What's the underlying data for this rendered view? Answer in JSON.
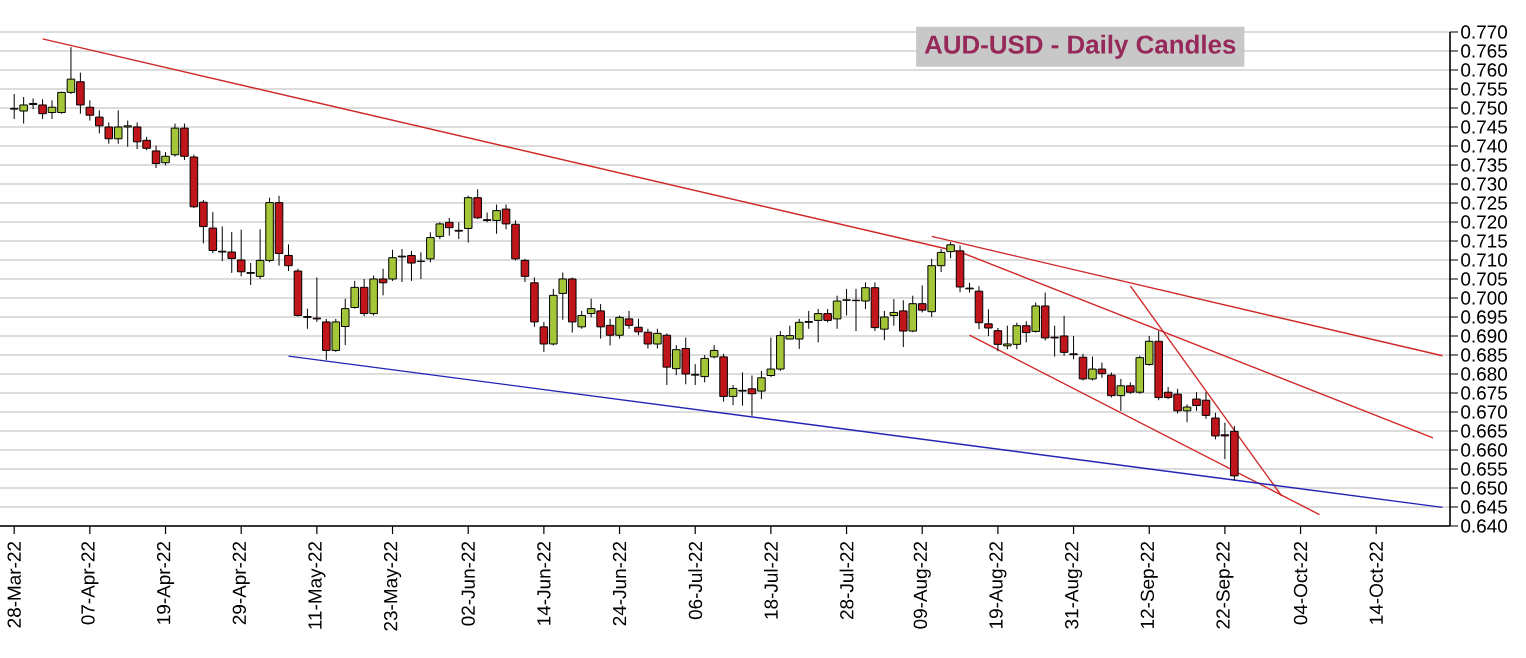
{
  "chart_data": {
    "type": "candlestick",
    "title": "AUD-USD - Daily Candles",
    "categories": [
      "28-Mar-22",
      null,
      null,
      null,
      null,
      null,
      null,
      null,
      "07-Apr-22",
      null,
      null,
      null,
      null,
      null,
      null,
      null,
      "19-Apr-22",
      null,
      null,
      null,
      null,
      null,
      null,
      null,
      "29-Apr-22",
      null,
      null,
      null,
      null,
      null,
      null,
      null,
      "11-May-22",
      null,
      null,
      null,
      null,
      null,
      null,
      null,
      "23-May-22",
      null,
      null,
      null,
      null,
      null,
      null,
      null,
      "02-Jun-22",
      null,
      null,
      null,
      null,
      null,
      null,
      null,
      "14-Jun-22",
      null,
      null,
      null,
      null,
      null,
      null,
      null,
      "24-Jun-22",
      null,
      null,
      null,
      null,
      null,
      null,
      null,
      "06-Jul-22",
      null,
      null,
      null,
      null,
      null,
      null,
      null,
      "18-Jul-22",
      null,
      null,
      null,
      null,
      null,
      null,
      null,
      "28-Jul-22",
      null,
      null,
      null,
      null,
      null,
      null,
      null,
      "09-Aug-22",
      null,
      null,
      null,
      null,
      null,
      null,
      null,
      "19-Aug-22",
      null,
      null,
      null,
      null,
      null,
      null,
      null,
      "31-Aug-22",
      null,
      null,
      null,
      null,
      null,
      null,
      null,
      "12-Sep-22",
      null,
      null,
      null,
      null,
      null,
      null,
      null,
      "22-Sep-22",
      null,
      null,
      null,
      null,
      null,
      null,
      null,
      "04-Oct-22",
      null,
      null,
      null,
      null,
      null,
      null,
      null,
      "14-Oct-22",
      null,
      null,
      null,
      null,
      null,
      null,
      null
    ],
    "ohlc": [
      [
        0.7497,
        0.7537,
        0.7471,
        0.7499
      ],
      [
        0.7492,
        0.7529,
        0.7459,
        0.7508
      ],
      [
        0.7509,
        0.7525,
        0.7497,
        0.7512
      ],
      [
        0.7508,
        0.7523,
        0.7471,
        0.7485
      ],
      [
        0.7488,
        0.752,
        0.7471,
        0.7502
      ],
      [
        0.7488,
        0.7543,
        0.7485,
        0.7541
      ],
      [
        0.7541,
        0.766,
        0.7537,
        0.7576
      ],
      [
        0.7569,
        0.7593,
        0.7485,
        0.7508
      ],
      [
        0.7502,
        0.752,
        0.7467,
        0.7481
      ],
      [
        0.7476,
        0.7494,
        0.7433,
        0.7453
      ],
      [
        0.745,
        0.7462,
        0.7406,
        0.7419
      ],
      [
        0.7419,
        0.7494,
        0.7406,
        0.745
      ],
      [
        0.745,
        0.7467,
        0.7398,
        0.7453
      ],
      [
        0.745,
        0.7462,
        0.7392,
        0.7411
      ],
      [
        0.7415,
        0.7424,
        0.7389,
        0.7394
      ],
      [
        0.7387,
        0.7401,
        0.7342,
        0.7354
      ],
      [
        0.7356,
        0.7384,
        0.7349,
        0.7373
      ],
      [
        0.7377,
        0.7459,
        0.7372,
        0.7447
      ],
      [
        0.7447,
        0.7459,
        0.7363,
        0.7373
      ],
      [
        0.7371,
        0.7377,
        0.7237,
        0.724
      ],
      [
        0.7252,
        0.7258,
        0.7144,
        0.7188
      ],
      [
        0.7184,
        0.7226,
        0.7118,
        0.7125
      ],
      [
        0.7123,
        0.7188,
        0.7097,
        0.7121
      ],
      [
        0.7121,
        0.7174,
        0.7066,
        0.7104
      ],
      [
        0.71,
        0.718,
        0.7057,
        0.7069
      ],
      [
        0.7065,
        0.7092,
        0.7034,
        0.7067
      ],
      [
        0.7057,
        0.7181,
        0.705,
        0.7099
      ],
      [
        0.7099,
        0.7264,
        0.7094,
        0.7251
      ],
      [
        0.7251,
        0.7269,
        0.7085,
        0.7117
      ],
      [
        0.7112,
        0.7141,
        0.7071,
        0.7085
      ],
      [
        0.7071,
        0.7077,
        0.6951,
        0.6954
      ],
      [
        0.6951,
        0.6972,
        0.6919,
        0.6949
      ],
      [
        0.6947,
        0.7054,
        0.6937,
        0.6945
      ],
      [
        0.6937,
        0.6945,
        0.6837,
        0.6862
      ],
      [
        0.6862,
        0.6945,
        0.6858,
        0.6937
      ],
      [
        0.6925,
        0.6998,
        0.6876,
        0.6972
      ],
      [
        0.6975,
        0.7045,
        0.6972,
        0.7028
      ],
      [
        0.7028,
        0.705,
        0.6952,
        0.6959
      ],
      [
        0.6959,
        0.7059,
        0.6954,
        0.705
      ],
      [
        0.705,
        0.7077,
        0.7007,
        0.704
      ],
      [
        0.705,
        0.7127,
        0.7045,
        0.7106
      ],
      [
        0.7108,
        0.7129,
        0.7042,
        0.711
      ],
      [
        0.7112,
        0.7124,
        0.7045,
        0.7092
      ],
      [
        0.7097,
        0.712,
        0.705,
        0.7096
      ],
      [
        0.7103,
        0.7173,
        0.7094,
        0.7159
      ],
      [
        0.7162,
        0.7199,
        0.7155,
        0.7195
      ],
      [
        0.7199,
        0.7211,
        0.7164,
        0.7185
      ],
      [
        0.7178,
        0.7199,
        0.7155,
        0.7176
      ],
      [
        0.7183,
        0.7269,
        0.7146,
        0.7264
      ],
      [
        0.7264,
        0.7286,
        0.7208,
        0.7211
      ],
      [
        0.7206,
        0.7225,
        0.7199,
        0.7204
      ],
      [
        0.7204,
        0.7246,
        0.7169,
        0.723
      ],
      [
        0.7234,
        0.7246,
        0.7181,
        0.7195
      ],
      [
        0.7194,
        0.7204,
        0.7099,
        0.7103
      ],
      [
        0.7099,
        0.7103,
        0.7042,
        0.7057
      ],
      [
        0.704,
        0.7054,
        0.6924,
        0.6937
      ],
      [
        0.6924,
        0.6937,
        0.6858,
        0.6879
      ],
      [
        0.6879,
        0.7024,
        0.6875,
        0.7007
      ],
      [
        0.7012,
        0.7067,
        0.6943,
        0.705
      ],
      [
        0.705,
        0.7054,
        0.6909,
        0.6937
      ],
      [
        0.6924,
        0.6966,
        0.6919,
        0.6954
      ],
      [
        0.6959,
        0.6998,
        0.6949,
        0.6972
      ],
      [
        0.6966,
        0.6984,
        0.6893,
        0.6924
      ],
      [
        0.6928,
        0.6945,
        0.6875,
        0.6902
      ],
      [
        0.6902,
        0.6954,
        0.6893,
        0.6949
      ],
      [
        0.6945,
        0.6966,
        0.6919,
        0.6928
      ],
      [
        0.6923,
        0.6945,
        0.6902,
        0.6911
      ],
      [
        0.691,
        0.6919,
        0.6867,
        0.6879
      ],
      [
        0.6879,
        0.6919,
        0.6867,
        0.6907
      ],
      [
        0.6902,
        0.6907,
        0.6771,
        0.6818
      ],
      [
        0.6814,
        0.6876,
        0.6797,
        0.6864
      ],
      [
        0.6867,
        0.6896,
        0.6773,
        0.68
      ],
      [
        0.6797,
        0.6826,
        0.6771,
        0.6799
      ],
      [
        0.6793,
        0.685,
        0.6778,
        0.6841
      ],
      [
        0.6845,
        0.6876,
        0.6841,
        0.6862
      ],
      [
        0.6845,
        0.6853,
        0.6727,
        0.6741
      ],
      [
        0.6741,
        0.6771,
        0.6718,
        0.6762
      ],
      [
        0.6757,
        0.6804,
        0.6717,
        0.6755
      ],
      [
        0.6761,
        0.6796,
        0.669,
        0.6748
      ],
      [
        0.6755,
        0.6808,
        0.6734,
        0.679
      ],
      [
        0.6796,
        0.6896,
        0.6792,
        0.6813
      ],
      [
        0.6813,
        0.6913,
        0.6808,
        0.6901
      ],
      [
        0.6892,
        0.6927,
        0.6892,
        0.6901
      ],
      [
        0.6892,
        0.6945,
        0.6866,
        0.6936
      ],
      [
        0.6936,
        0.6966,
        0.6919,
        0.6938
      ],
      [
        0.6941,
        0.6971,
        0.6883,
        0.6959
      ],
      [
        0.6959,
        0.6971,
        0.6936,
        0.6941
      ],
      [
        0.6945,
        0.7006,
        0.6919,
        0.6992
      ],
      [
        0.6994,
        0.7024,
        0.6954,
        0.6995
      ],
      [
        0.6994,
        0.7024,
        0.6913,
        0.6993
      ],
      [
        0.6992,
        0.7041,
        0.6971,
        0.7027
      ],
      [
        0.7027,
        0.7041,
        0.6913,
        0.6922
      ],
      [
        0.6918,
        0.6966,
        0.6889,
        0.695
      ],
      [
        0.6954,
        0.6997,
        0.6927,
        0.6962
      ],
      [
        0.6966,
        0.6994,
        0.6871,
        0.6913
      ],
      [
        0.6913,
        0.7006,
        0.691,
        0.6985
      ],
      [
        0.6985,
        0.7033,
        0.6962,
        0.6968
      ],
      [
        0.6964,
        0.7103,
        0.695,
        0.7085
      ],
      [
        0.7085,
        0.7129,
        0.7068,
        0.712
      ],
      [
        0.7122,
        0.7147,
        0.7105,
        0.714
      ],
      [
        0.7124,
        0.7138,
        0.7015,
        0.7029
      ],
      [
        0.7024,
        0.704,
        0.7014,
        0.7026
      ],
      [
        0.7018,
        0.7031,
        0.6918,
        0.6935
      ],
      [
        0.6932,
        0.697,
        0.69,
        0.6921
      ],
      [
        0.6914,
        0.6921,
        0.686,
        0.6878
      ],
      [
        0.6874,
        0.6927,
        0.6865,
        0.6879
      ],
      [
        0.6878,
        0.6935,
        0.6865,
        0.6927
      ],
      [
        0.6927,
        0.6939,
        0.6883,
        0.6909
      ],
      [
        0.6912,
        0.6988,
        0.6909,
        0.6979
      ],
      [
        0.6979,
        0.7014,
        0.6888,
        0.6895
      ],
      [
        0.6897,
        0.6927,
        0.6846,
        0.6895
      ],
      [
        0.69,
        0.6953,
        0.6848,
        0.6857
      ],
      [
        0.6853,
        0.69,
        0.6839,
        0.6851
      ],
      [
        0.6844,
        0.6853,
        0.6783,
        0.6787
      ],
      [
        0.6787,
        0.6846,
        0.6783,
        0.6813
      ],
      [
        0.6813,
        0.683,
        0.679,
        0.6801
      ],
      [
        0.6797,
        0.6804,
        0.6738,
        0.6743
      ],
      [
        0.6743,
        0.6787,
        0.6703,
        0.6769
      ],
      [
        0.6769,
        0.6778,
        0.6748,
        0.6752
      ],
      [
        0.6752,
        0.6848,
        0.6748,
        0.6843
      ],
      [
        0.6825,
        0.69,
        0.6822,
        0.6886
      ],
      [
        0.6886,
        0.6913,
        0.6731,
        0.6738
      ],
      [
        0.6752,
        0.6766,
        0.6734,
        0.6738
      ],
      [
        0.6747,
        0.6761,
        0.6696,
        0.6703
      ],
      [
        0.6703,
        0.672,
        0.6673,
        0.6713
      ],
      [
        0.6734,
        0.6752,
        0.6703,
        0.6717
      ],
      [
        0.6731,
        0.6752,
        0.6682,
        0.6691
      ],
      [
        0.6684,
        0.6698,
        0.6628,
        0.6637
      ],
      [
        0.664,
        0.6672,
        0.6576,
        0.6637
      ],
      [
        0.6649,
        0.6663,
        0.652,
        0.6532
      ],
      null,
      null,
      null,
      null,
      null,
      null,
      null,
      null,
      null,
      null,
      null,
      null,
      null,
      null,
      null,
      null,
      null,
      null,
      null,
      null,
      null,
      null
    ],
    "colors": [
      "#a4c639",
      "#a4c639",
      "#a4c639",
      "#c0151b",
      "#a4c639",
      "#a4c639",
      "#a4c639",
      "#c0151b",
      "#c0151b",
      "#c0151b",
      "#c0151b",
      "#a4c639",
      "#a4c639",
      "#c0151b",
      "#c0151b",
      "#c0151b",
      "#a4c639",
      "#a4c639",
      "#c0151b",
      "#c0151b",
      "#c0151b",
      "#c0151b",
      "#c0151b",
      "#c0151b",
      "#c0151b",
      "#a4c639",
      "#a4c639",
      "#a4c639",
      "#c0151b",
      "#c0151b",
      "#c0151b",
      "#c0151b",
      "#c0151b",
      "#c0151b",
      "#a4c639",
      "#a4c639",
      "#a4c639",
      "#c0151b",
      "#a4c639",
      "#c0151b",
      "#a4c639",
      "#a4c639",
      "#c0151b",
      "#c0151b",
      "#a4c639",
      "#a4c639",
      "#c0151b",
      "#c0151b",
      "#a4c639",
      "#c0151b",
      "#c0151b",
      "#a4c639",
      "#c0151b",
      "#c0151b",
      "#c0151b",
      "#c0151b",
      "#c0151b",
      "#a4c639",
      "#a4c639",
      "#c0151b",
      "#a4c639",
      "#a4c639",
      "#c0151b",
      "#c0151b",
      "#a4c639",
      "#c0151b",
      "#c0151b",
      "#c0151b",
      "#a4c639",
      "#c0151b",
      "#a4c639",
      "#c0151b",
      "#a4c639",
      "#a4c639",
      "#a4c639",
      "#c0151b",
      "#a4c639",
      "#c0151b",
      "#c0151b",
      "#a4c639",
      "#a4c639",
      "#a4c639",
      "#a4c639",
      "#a4c639",
      "#a4c639",
      "#a4c639",
      "#c0151b",
      "#a4c639",
      "#a4c639",
      "#c0151b",
      "#a4c639",
      "#c0151b",
      "#a4c639",
      "#a4c639",
      "#c0151b",
      "#a4c639",
      "#c0151b",
      "#a4c639",
      "#a4c639",
      "#a4c639",
      "#c0151b",
      "#a4c639",
      "#c0151b",
      "#c0151b",
      "#c0151b",
      "#a4c639",
      "#a4c639",
      "#c0151b",
      "#a4c639",
      "#c0151b",
      "#c0151b",
      "#c0151b",
      "#c0151b",
      "#c0151b",
      "#a4c639",
      "#c0151b",
      "#c0151b",
      "#a4c639",
      "#c0151b",
      "#a4c639",
      "#a4c639",
      "#c0151b",
      "#c0151b",
      "#c0151b",
      "#a4c639",
      "#c0151b",
      "#c0151b",
      "#c0151b",
      "#c0151b",
      "#c0151b",
      null,
      null,
      null,
      null,
      null,
      null,
      null,
      null,
      null,
      null,
      null,
      null,
      null,
      null,
      null,
      null,
      null,
      null,
      null,
      null,
      null,
      null
    ],
    "series": [
      {
        "type": "line",
        "color": "#d02828",
        "values": [
          null,
          null,
          null,
          0.7682,
          null,
          null,
          null,
          null,
          null,
          null,
          null,
          null,
          null,
          null,
          null,
          null,
          null,
          null,
          null,
          null,
          null,
          null,
          null,
          null,
          null,
          null,
          null,
          null,
          null,
          null,
          null,
          null,
          null,
          null,
          null,
          null,
          null,
          null,
          null,
          null,
          null,
          null,
          null,
          null,
          null,
          null,
          null,
          null,
          null,
          null,
          null,
          null,
          null,
          null,
          null,
          null,
          null,
          null,
          null,
          null,
          null,
          null,
          null,
          null,
          null,
          null,
          null,
          null,
          null,
          null,
          null,
          null,
          null,
          null,
          null,
          null,
          null,
          null,
          null,
          null,
          null,
          null,
          null,
          null,
          null,
          null,
          null,
          null,
          null,
          null,
          null,
          null,
          null,
          null,
          null,
          null,
          null,
          null,
          null,
          null,
          0.7121,
          null,
          null,
          null,
          null,
          null,
          null,
          null,
          null,
          null,
          null,
          null,
          null,
          null,
          null,
          null,
          null,
          null,
          null,
          null,
          null,
          null,
          null,
          null,
          null,
          null,
          null,
          null,
          null,
          null,
          null,
          null,
          null,
          null,
          null,
          null,
          null,
          null,
          null,
          null,
          null,
          null,
          null,
          null,
          null,
          null,
          null,
          null,
          null,
          null,
          0.6632,
          null
        ]
      },
      {
        "type": "line",
        "color": "#d02828",
        "values": [
          null,
          null,
          null,
          null,
          null,
          null,
          null,
          null,
          null,
          null,
          null,
          null,
          null,
          null,
          null,
          null,
          null,
          null,
          null,
          null,
          null,
          null,
          null,
          null,
          null,
          null,
          null,
          null,
          null,
          null,
          null,
          null,
          null,
          null,
          null,
          null,
          null,
          null,
          null,
          null,
          null,
          null,
          null,
          null,
          null,
          null,
          null,
          null,
          null,
          null,
          null,
          null,
          null,
          null,
          null,
          null,
          null,
          null,
          null,
          null,
          null,
          null,
          null,
          null,
          null,
          null,
          null,
          null,
          null,
          null,
          null,
          null,
          null,
          null,
          null,
          null,
          null,
          null,
          null,
          null,
          null,
          null,
          null,
          null,
          null,
          null,
          null,
          null,
          null,
          null,
          null,
          null,
          null,
          null,
          null,
          null,
          null,
          0.7162,
          null,
          null,
          null,
          null,
          null,
          null,
          null,
          null,
          null,
          null,
          null,
          null,
          null,
          null,
          null,
          null,
          null,
          null,
          null,
          null,
          null,
          null,
          null,
          null,
          null,
          null,
          null,
          null,
          null,
          null,
          null,
          null,
          null,
          null,
          null,
          null,
          null,
          null,
          null,
          null,
          null,
          null,
          null,
          null,
          null,
          null,
          null,
          null,
          null,
          null,
          null,
          null,
          null,
          0.6848
        ]
      },
      {
        "type": "line",
        "color": "#d02828",
        "values": [
          null,
          null,
          null,
          null,
          null,
          null,
          null,
          null,
          null,
          null,
          null,
          null,
          null,
          null,
          null,
          null,
          null,
          null,
          null,
          null,
          null,
          null,
          null,
          null,
          null,
          null,
          null,
          null,
          null,
          null,
          null,
          null,
          null,
          null,
          null,
          null,
          null,
          null,
          null,
          null,
          null,
          null,
          null,
          null,
          null,
          null,
          null,
          null,
          null,
          null,
          null,
          null,
          null,
          null,
          null,
          null,
          null,
          null,
          null,
          null,
          null,
          null,
          null,
          null,
          null,
          null,
          null,
          null,
          null,
          null,
          null,
          null,
          null,
          null,
          null,
          null,
          null,
          null,
          null,
          null,
          null,
          null,
          null,
          null,
          null,
          null,
          null,
          null,
          null,
          null,
          null,
          null,
          null,
          null,
          null,
          null,
          null,
          null,
          null,
          null,
          null,
          0.6902,
          null,
          null,
          null,
          null,
          null,
          null,
          null,
          null,
          null,
          null,
          null,
          null,
          null,
          null,
          null,
          null,
          null,
          null,
          null,
          null,
          null,
          null,
          null,
          null,
          null,
          null,
          null,
          null,
          null,
          null,
          null,
          null,
          null,
          null,
          null,
          null,
          0.643,
          null,
          null,
          null,
          null,
          null,
          null,
          null,
          null,
          null,
          null,
          null,
          null,
          null
        ]
      },
      {
        "type": "line",
        "color": "#d02828",
        "values": [
          null,
          null,
          null,
          null,
          null,
          null,
          null,
          null,
          null,
          null,
          null,
          null,
          null,
          null,
          null,
          null,
          null,
          null,
          null,
          null,
          null,
          null,
          null,
          null,
          null,
          null,
          null,
          null,
          null,
          null,
          null,
          null,
          null,
          null,
          null,
          null,
          null,
          null,
          null,
          null,
          null,
          null,
          null,
          null,
          null,
          null,
          null,
          null,
          null,
          null,
          null,
          null,
          null,
          null,
          null,
          null,
          null,
          null,
          null,
          null,
          null,
          null,
          null,
          null,
          null,
          null,
          null,
          null,
          null,
          null,
          null,
          null,
          null,
          null,
          null,
          null,
          null,
          null,
          null,
          null,
          null,
          null,
          null,
          null,
          null,
          null,
          null,
          null,
          null,
          null,
          null,
          null,
          null,
          null,
          null,
          null,
          null,
          null,
          null,
          null,
          null,
          null,
          null,
          null,
          null,
          null,
          null,
          null,
          null,
          null,
          null,
          null,
          null,
          null,
          null,
          null,
          null,
          null,
          0.7032,
          null,
          null,
          null,
          null,
          null,
          null,
          null,
          null,
          null,
          null,
          null,
          null,
          null,
          null,
          null,
          0.6479,
          null,
          null,
          null,
          null,
          null,
          null,
          null,
          null,
          null,
          null,
          null,
          null,
          null,
          null,
          null,
          null,
          null
        ]
      },
      {
        "type": "line",
        "color": "#2323b4",
        "values": [
          null,
          null,
          null,
          null,
          null,
          null,
          null,
          null,
          null,
          null,
          null,
          null,
          null,
          null,
          null,
          null,
          null,
          null,
          null,
          null,
          null,
          null,
          null,
          null,
          null,
          null,
          null,
          null,
          null,
          0.6847,
          null,
          null,
          null,
          null,
          null,
          null,
          null,
          null,
          null,
          null,
          null,
          null,
          null,
          null,
          null,
          null,
          null,
          null,
          null,
          null,
          null,
          null,
          null,
          null,
          null,
          null,
          null,
          null,
          null,
          null,
          null,
          null,
          null,
          null,
          null,
          null,
          null,
          null,
          null,
          null,
          null,
          null,
          null,
          null,
          null,
          null,
          null,
          null,
          null,
          null,
          null,
          null,
          null,
          null,
          null,
          null,
          null,
          null,
          null,
          null,
          null,
          null,
          null,
          null,
          null,
          null,
          null,
          null,
          null,
          null,
          null,
          null,
          null,
          null,
          null,
          null,
          null,
          null,
          null,
          null,
          null,
          null,
          null,
          null,
          null,
          null,
          null,
          null,
          null,
          null,
          null,
          null,
          null,
          null,
          null,
          null,
          null,
          null,
          null,
          null,
          null,
          null,
          null,
          null,
          null,
          null,
          null,
          null,
          null,
          null,
          null,
          null,
          null,
          null,
          null,
          null,
          null,
          null,
          null,
          null,
          null,
          0.6449
        ]
      }
    ],
    "ylim": [
      0.64,
      0.77
    ],
    "yticks": [
      {
        "value": 0.64,
        "label": "0.640"
      },
      {
        "value": 0.645,
        "label": "0.645"
      },
      {
        "value": 0.65,
        "label": "0.650"
      },
      {
        "value": 0.655,
        "label": "0.655"
      },
      {
        "value": 0.66,
        "label": "0.660"
      },
      {
        "value": 0.665,
        "label": "0.665"
      },
      {
        "value": 0.67,
        "label": "0.670"
      },
      {
        "value": 0.675,
        "label": "0.675"
      },
      {
        "value": 0.68,
        "label": "0.680"
      },
      {
        "value": 0.685,
        "label": "0.685"
      },
      {
        "value": 0.69,
        "label": "0.690"
      },
      {
        "value": 0.695,
        "label": "0.695"
      },
      {
        "value": 0.7,
        "label": "0.700"
      },
      {
        "value": 0.705,
        "label": "0.705"
      },
      {
        "value": 0.71,
        "label": "0.710"
      },
      {
        "value": 0.715,
        "label": "0.715"
      },
      {
        "value": 0.72,
        "label": "0.720"
      },
      {
        "value": 0.725,
        "label": "0.725"
      },
      {
        "value": 0.73,
        "label": "0.730"
      },
      {
        "value": 0.735,
        "label": "0.735"
      },
      {
        "value": 0.74,
        "label": "0.740"
      },
      {
        "value": 0.745,
        "label": "0.745"
      },
      {
        "value": 0.75,
        "label": "0.750"
      },
      {
        "value": 0.755,
        "label": "0.755"
      },
      {
        "value": 0.76,
        "label": "0.760"
      },
      {
        "value": 0.765,
        "label": "0.765"
      },
      {
        "value": 0.77,
        "label": "0.770"
      }
    ],
    "grid": "y"
  }
}
